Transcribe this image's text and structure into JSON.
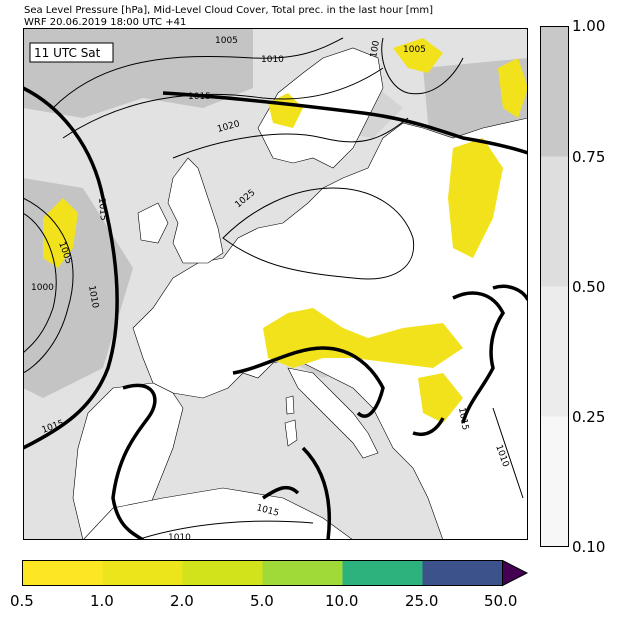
{
  "title": {
    "line1": "Sea Level Pressure [hPa], Mid-Level Cloud Cover, Total prec. in the last hour [mm]",
    "line2": "WRF 20.06.2019 18:00 UTC +41"
  },
  "map": {
    "time_label": "11 UTC Sat",
    "isobar_labels": [
      "1005",
      "1010",
      "1005",
      "1000",
      "1005",
      "100",
      "1015",
      "1020",
      "1025",
      "1015",
      "1005",
      "1000",
      "1010",
      "1015",
      "1015",
      "1015",
      "1010",
      "1015",
      "1010"
    ],
    "colors": {
      "sea_cloud": "#c4c4c4",
      "land": "#ffffff",
      "precip": "#f2e21c",
      "isobar": "#000000"
    }
  },
  "cloud_colorbar": {
    "ticks": [
      "1.00",
      "0.75",
      "0.50",
      "0.25",
      "0.10"
    ],
    "colors": [
      "#c8c8c8",
      "#dedede",
      "#ececec",
      "#f7f7f7"
    ]
  },
  "precip_colorbar": {
    "ticks": [
      "0.5",
      "1.0",
      "2.0",
      "5.0",
      "10.0",
      "25.0",
      "50.0"
    ],
    "colors": [
      "#fde725",
      "#ece51b",
      "#d2e21b",
      "#a0da39",
      "#2db27d",
      "#3b528b",
      "#440154"
    ]
  }
}
